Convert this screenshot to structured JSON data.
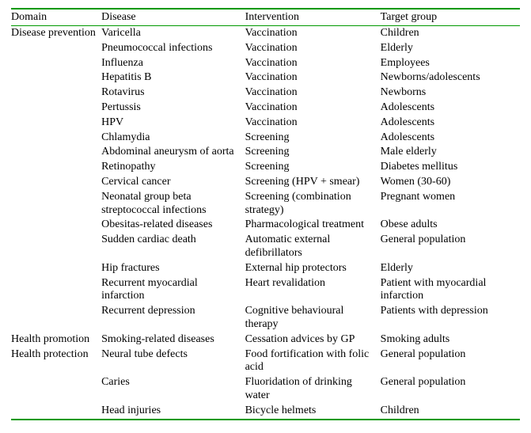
{
  "table": {
    "columns": [
      "Domain",
      "Disease",
      "Intervention",
      "Target group"
    ],
    "rows": [
      [
        "Disease prevention",
        "Varicella",
        "Vaccination",
        "Children"
      ],
      [
        "",
        "Pneumococcal infections",
        "Vaccination",
        "Elderly"
      ],
      [
        "",
        "Influenza",
        "Vaccination",
        "Employees"
      ],
      [
        "",
        "Hepatitis B",
        "Vaccination",
        "Newborns/adolescents"
      ],
      [
        "",
        "Rotavirus",
        "Vaccination",
        "Newborns"
      ],
      [
        "",
        "Pertussis",
        "Vaccination",
        "Adolescents"
      ],
      [
        "",
        "HPV",
        "Vaccination",
        "Adolescents"
      ],
      [
        "",
        "Chlamydia",
        "Screening",
        "Adolescents"
      ],
      [
        "",
        "Abdominal aneurysm of aorta",
        "Screening",
        "Male elderly"
      ],
      [
        "",
        "Retinopathy",
        "Screening",
        "Diabetes mellitus"
      ],
      [
        "",
        "Cervical cancer",
        "Screening (HPV + smear)",
        "Women (30-60)"
      ],
      [
        "",
        "Neonatal group beta streptococcal infections",
        "Screening (combination strategy)",
        "Pregnant women"
      ],
      [
        "",
        "Obesitas-related diseases",
        "Pharmacological treatment",
        "Obese adults"
      ],
      [
        "",
        "Sudden cardiac death",
        "Automatic external defibrillators",
        "General population"
      ],
      [
        "",
        "Hip fractures",
        "External hip protectors",
        "Elderly"
      ],
      [
        "",
        "Recurrent myocardial infarction",
        "Heart revalidation",
        "Patient with myocardial infarction"
      ],
      [
        "",
        "Recurrent depression",
        "Cognitive behavioural therapy",
        "Patients with depression"
      ],
      [
        "Health promotion",
        "Smoking-related diseases",
        "Cessation advices by GP",
        "Smoking adults"
      ],
      [
        "Health protection",
        "Neural tube defects",
        "Food fortification with folic acid",
        "General population"
      ],
      [
        "",
        "Caries",
        "Fluoridation of drinking water",
        "General population"
      ],
      [
        "",
        "Head injuries",
        "Bicycle helmets",
        "Children"
      ]
    ],
    "border_color": "#009900",
    "font_family": "Times New Roman",
    "font_size_pt": 11,
    "background_color": "#ffffff",
    "text_color": "#000000"
  }
}
